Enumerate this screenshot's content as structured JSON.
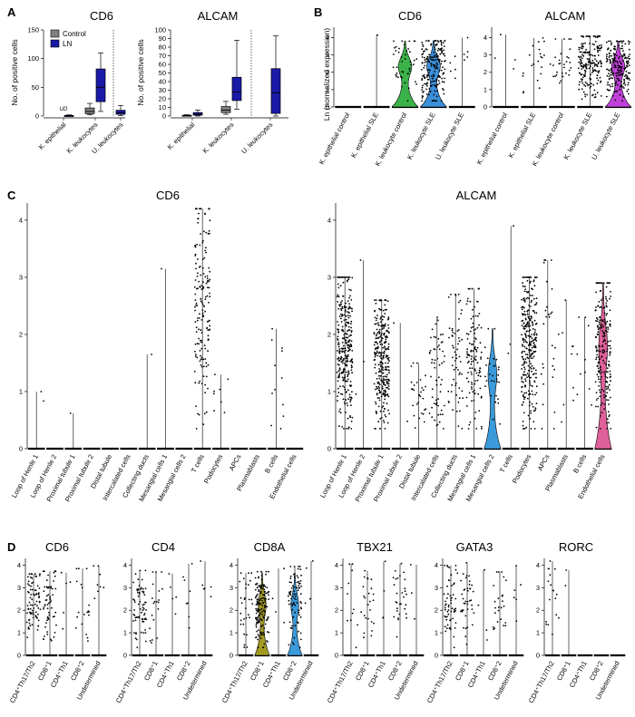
{
  "panels": {
    "A": {
      "label": "A",
      "ylabel": "No. of positive cells",
      "legend": [
        {
          "name": "Control",
          "color": "#808080"
        },
        {
          "name": "LN",
          "color": "#1a1aa8"
        }
      ],
      "ud_label": "UD",
      "charts": [
        {
          "title": "CD6",
          "type": "box",
          "ylim": [
            0,
            150
          ],
          "yticks": [
            0,
            50,
            100,
            150
          ],
          "categories": [
            "K. epithelial",
            "K. leukocytes",
            "U. leukocytes"
          ],
          "boxes": [
            {
              "cat": 0,
              "group": "LN",
              "min": 0,
              "q1": 0,
              "median": 0.5,
              "q3": 1,
              "max": 2
            },
            {
              "cat": 1,
              "group": "Control",
              "min": 2,
              "q1": 4,
              "median": 8,
              "q3": 14,
              "max": 22
            },
            {
              "cat": 1,
              "group": "LN",
              "min": 8,
              "q1": 25,
              "median": 50,
              "q3": 82,
              "max": 110
            },
            {
              "cat": 2,
              "group": "LN",
              "min": 1,
              "q1": 3,
              "median": 6,
              "q3": 10,
              "max": 18
            }
          ]
        },
        {
          "title": "ALCAM",
          "type": "box",
          "ylim": [
            0,
            100
          ],
          "yticks": [
            0,
            10,
            20,
            30,
            40,
            50,
            60,
            70,
            80,
            90,
            100
          ],
          "categories": [
            "K. epithelial",
            "K. leukocytes",
            "U. leukocytes"
          ],
          "boxes": [
            {
              "cat": 0,
              "group": "Control",
              "min": 0,
              "q1": 0,
              "median": 0.5,
              "q3": 1,
              "max": 1.5
            },
            {
              "cat": 0,
              "group": "LN",
              "min": 0,
              "q1": 1,
              "median": 2,
              "q3": 4,
              "max": 7
            },
            {
              "cat": 1,
              "group": "Control",
              "min": 2,
              "q1": 4,
              "median": 7,
              "q3": 11,
              "max": 17
            },
            {
              "cat": 1,
              "group": "LN",
              "min": 8,
              "q1": 18,
              "median": 28,
              "q3": 45,
              "max": 88
            },
            {
              "cat": 2,
              "group": "LN",
              "min": 0,
              "q1": 3,
              "median": 27,
              "q3": 55,
              "max": 93
            }
          ]
        }
      ]
    },
    "B": {
      "label": "B",
      "ylabel": "Ln (normalized expression)",
      "charts": [
        {
          "title": "CD6",
          "yticks": [
            0,
            1,
            2,
            3,
            4
          ],
          "ymax": 4.6,
          "categories": [
            "K. epithelial control",
            "K. epithelial SLE",
            "K. leukocyte control",
            "K. leukocyte SLE",
            "U. leukocyte SLE"
          ],
          "colors": [
            "#888888",
            "#888888",
            "#3cb34a",
            "#3b8fd9",
            "#888888"
          ],
          "n": [
            0,
            1,
            45,
            260,
            10
          ],
          "zero_frac": [
            1,
            0.95,
            0.55,
            0.55,
            0.9
          ]
        },
        {
          "title": "ALCAM",
          "yticks": [
            0,
            1,
            2,
            3,
            4
          ],
          "ymax": 4.6,
          "categories": [
            "K. epithelial control",
            "K. epithelial SLE",
            "K. leukocyte control",
            "K. leukocyte SLE",
            "U. leukocyte SLE"
          ],
          "colors": [
            "#888888",
            "#888888",
            "#888888",
            "#888888",
            "#c040d8"
          ],
          "n": [
            4,
            22,
            30,
            240,
            300
          ],
          "zero_frac": [
            0.95,
            0.9,
            0.85,
            0.75,
            0.35
          ]
        }
      ]
    },
    "C": {
      "label": "C",
      "categories": [
        "Loop of Henle 1",
        "Loop of Henle 2",
        "Proximal tubule 1",
        "Proximal tubule 2",
        "Distal tubule",
        "Intercalated cells",
        "Collecting ducts",
        "Mesangial cells 1",
        "Mesangial cells 2",
        "T cells",
        "Podocytes",
        "APCs",
        "Plasmablasts",
        "B cells",
        "Endothelial cells"
      ],
      "charts": [
        {
          "title": "CD6",
          "yticks": [
            0,
            1,
            2,
            3,
            4
          ],
          "ymax": 4.3,
          "n": [
            2,
            0,
            1,
            0,
            0,
            0,
            1,
            1,
            0,
            170,
            8,
            0,
            0,
            12,
            0
          ],
          "max": [
            1.0,
            0,
            0.62,
            0,
            0,
            0,
            1.65,
            3.15,
            0,
            4.2,
            1.3,
            0,
            0,
            2.1,
            0
          ],
          "violins": []
        },
        {
          "title": "ALCAM",
          "yticks": [
            0,
            1,
            2,
            3,
            4
          ],
          "ymax": 4.3,
          "n": [
            600,
            3,
            500,
            2,
            30,
            60,
            60,
            120,
            30,
            3,
            300,
            30,
            10,
            10,
            220
          ],
          "max": [
            3.0,
            3.3,
            2.6,
            2.2,
            1.5,
            2.3,
            2.7,
            2.8,
            2.1,
            3.9,
            3.0,
            3.3,
            2.6,
            2.3,
            2.9
          ],
          "violins": [
            {
              "cat": 8,
              "color": "#3b9ad9"
            },
            {
              "cat": 14,
              "color": "#e0609a"
            }
          ]
        }
      ]
    },
    "D": {
      "label": "D",
      "categories": [
        "CD4⁺Th17/Th2",
        "CD8⁺1",
        "CD4⁺Th1",
        "CD8⁺2",
        "Undetermined"
      ],
      "charts": [
        {
          "title": "CD6",
          "n": [
            80,
            60,
            5,
            20,
            8
          ],
          "violins": []
        },
        {
          "title": "CD4",
          "n": [
            70,
            20,
            5,
            8,
            6
          ],
          "violins": []
        },
        {
          "title": "CD8A",
          "n": [
            30,
            150,
            4,
            80,
            4
          ],
          "violins": [
            {
              "cat": 1,
              "color": "#a39a22"
            },
            {
              "cat": 3,
              "color": "#3b9ad9"
            }
          ]
        },
        {
          "title": "TBX21",
          "n": [
            12,
            25,
            4,
            30,
            3
          ],
          "violins": []
        },
        {
          "title": "GATA3",
          "n": [
            60,
            40,
            4,
            25,
            6
          ],
          "violins": []
        },
        {
          "title": "RORC",
          "n": [
            18,
            2,
            0,
            0,
            0
          ],
          "violins": []
        }
      ],
      "yticks": [
        0,
        1,
        2,
        3,
        4
      ],
      "ymax": 4.3
    }
  }
}
